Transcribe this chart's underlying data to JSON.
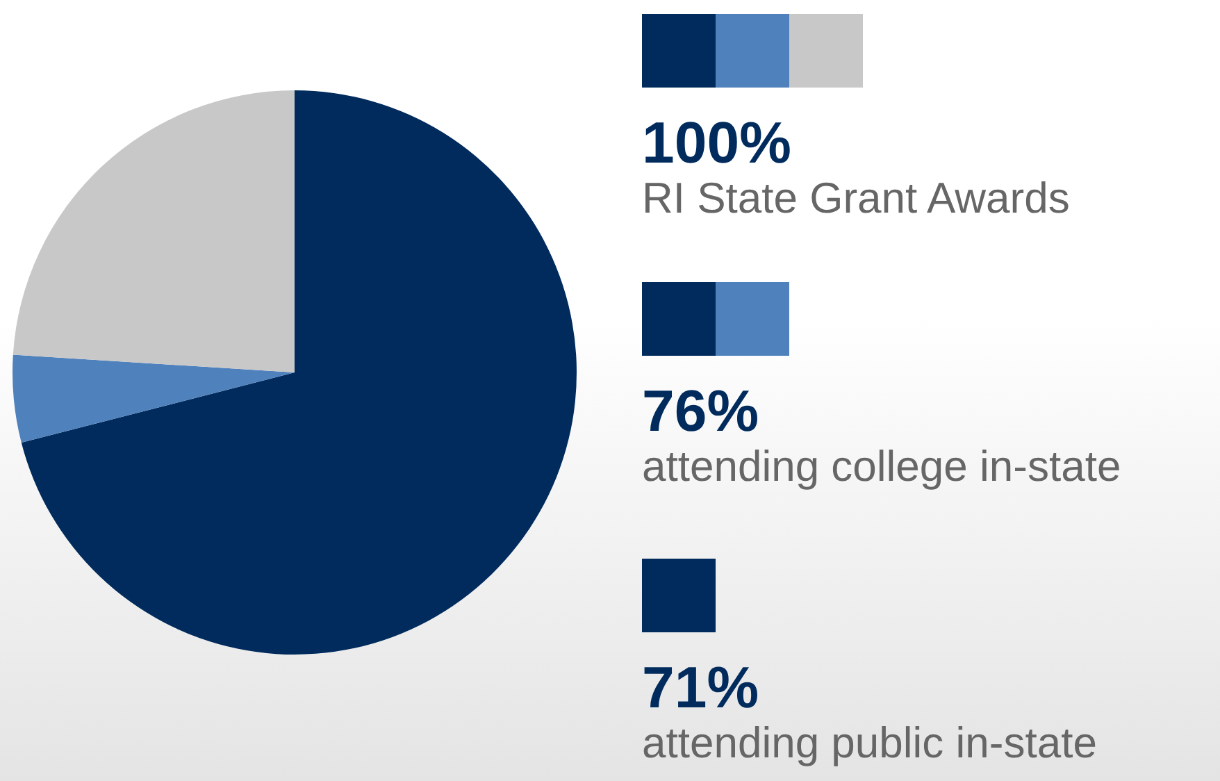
{
  "chart_data": {
    "type": "pie",
    "categories": [
      null,
      null,
      null
    ],
    "values": [
      71,
      5,
      24
    ],
    "colors": [
      "#002b5c",
      "#4f81bd",
      "#c8c8c8"
    ],
    "annotations": [
      "100%",
      "RI State Grant Awards",
      "76%",
      "attending college in-state",
      "71%",
      "attending public in-state"
    ]
  }
}
